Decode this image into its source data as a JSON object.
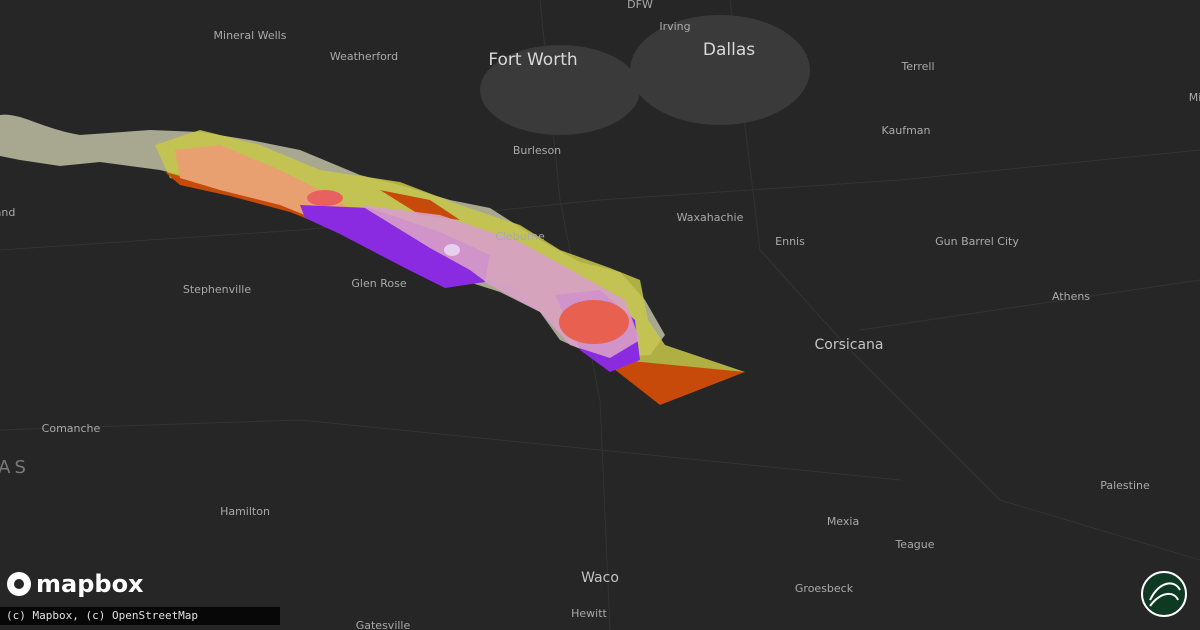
{
  "places": [
    "DFW",
    "Irving",
    "Dallas",
    "Fort Worth",
    "Mineral Wells",
    "Weatherford",
    "Terrell",
    "Kaufman",
    "Burleson",
    "Waxahachie",
    "Ennis",
    "Gun Barrel City",
    "Athens",
    "Stephenville",
    "Glen Rose",
    "Cleburne",
    "Corsicana",
    "Comanche",
    "Hamilton",
    "Mexia",
    "Teague",
    "Palestine",
    "Waco",
    "Hewitt",
    "Groesbeck",
    "Gatesville",
    "AS",
    "and",
    "Mi"
  ],
  "logo": "mapbox",
  "attribution": "(c) Mapbox, (c) OpenStreetMap"
}
